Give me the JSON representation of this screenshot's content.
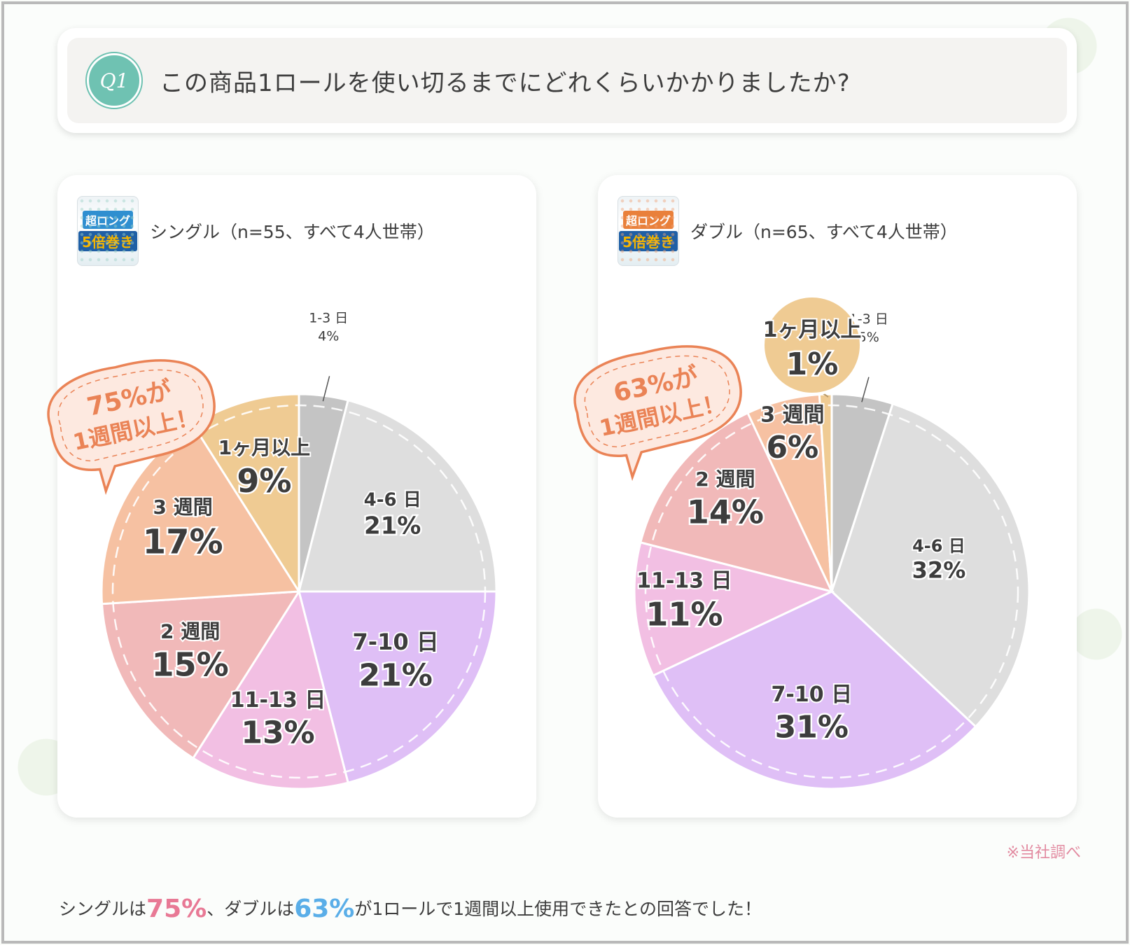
{
  "question": {
    "badge": "Q1",
    "text": "この商品1ロールを使い切るまでにどれくらいかかりましたか?"
  },
  "colors": {
    "1-3日": "#c4c4c4",
    "4-6日": "#dedede",
    "7-10日": "#dfbff6",
    "11-13日": "#f2bfe3",
    "2週間": "#f1b9b9",
    "3週間": "#f6c1a2",
    "1ヶ月以上": "#efcb93",
    "callout_stroke": "#ea8356",
    "callout_text": "#ea8356"
  },
  "panels": [
    {
      "title": "シングル（n=55、すべて4人世帯）",
      "product_label_a": "超ロング",
      "product_label_b": "5倍巻き",
      "callout": {
        "line1": "75%が",
        "line2": "1週間以上！"
      }
    },
    {
      "title": "ダブル（n=65、すべて4人世帯）",
      "product_label_a": "超ロング",
      "product_label_b": "5倍巻き",
      "callout": {
        "line1": "63%が",
        "line2": "1週間以上！"
      }
    }
  ],
  "chart_data": [
    {
      "type": "pie",
      "title": "シングル（n=55、すべて4人世帯）",
      "categories": [
        "1-3日",
        "4-6日",
        "7-10日",
        "11-13日",
        "2週間",
        "3週間",
        "1ヶ月以上"
      ],
      "category_labels": [
        "1-3 日",
        "4-6 日",
        "7-10 日",
        "11-13 日",
        "2 週間",
        "3 週間",
        "1ヶ月以上"
      ],
      "values": [
        4,
        21,
        21,
        13,
        15,
        17,
        9
      ],
      "value_labels": [
        "4%",
        "21%",
        "21%",
        "13%",
        "15%",
        "17%",
        "9%"
      ]
    },
    {
      "type": "pie",
      "title": "ダブル（n=65、すべて4人世帯）",
      "categories": [
        "1-3日",
        "4-6日",
        "7-10日",
        "11-13日",
        "2週間",
        "3週間",
        "1ヶ月以上"
      ],
      "category_labels": [
        "1-3 日",
        "4-6 日",
        "7-10 日",
        "11-13 日",
        "2 週間",
        "3 週間",
        "1ヶ月以上"
      ],
      "values": [
        5,
        32,
        31,
        11,
        14,
        6,
        1
      ],
      "value_labels": [
        "5%",
        "32%",
        "31%",
        "11%",
        "14%",
        "6%",
        "1%"
      ]
    }
  ],
  "note": "※当社調べ",
  "footer": {
    "part1": "シングルは",
    "single_pct": "75%",
    "part2": "、ダブルは",
    "double_pct": "63%",
    "part3": "が1ロールで1週間以上使用できたとの回答でした！"
  }
}
